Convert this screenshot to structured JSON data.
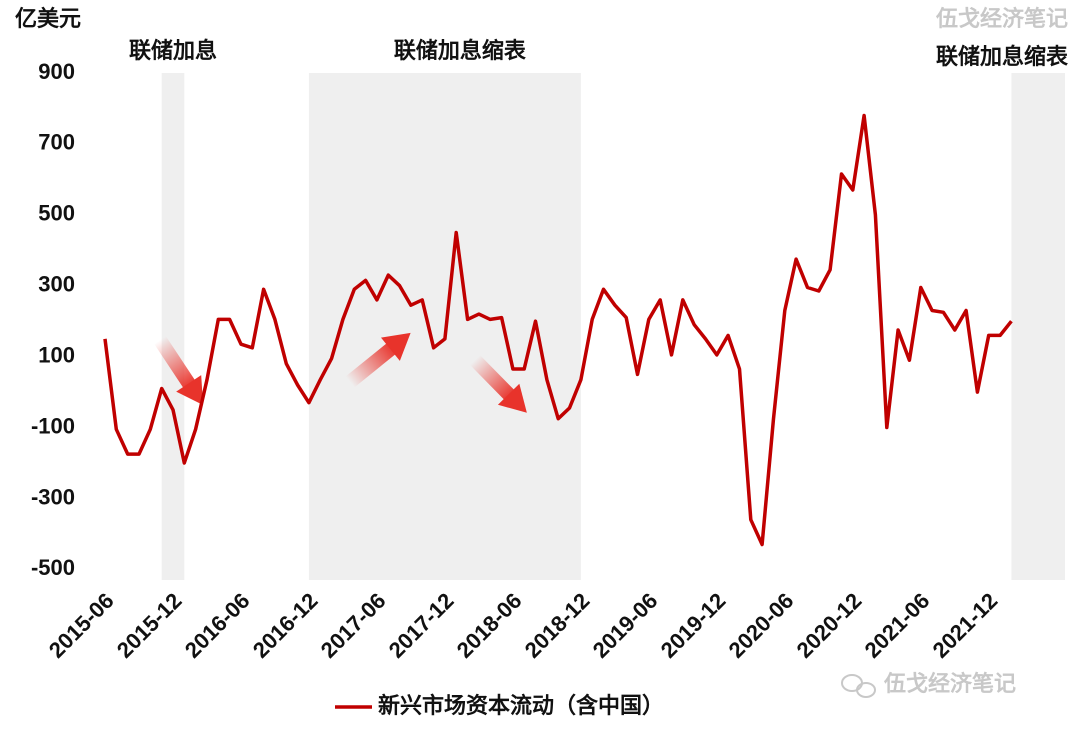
{
  "chart_data": {
    "type": "line",
    "y_axis_label": "亿美元",
    "watermark": "伍戈经济笔记",
    "x": [
      "2015-06",
      "2015-07",
      "2015-08",
      "2015-09",
      "2015-10",
      "2015-11",
      "2015-12",
      "2016-01",
      "2016-02",
      "2016-03",
      "2016-04",
      "2016-05",
      "2016-06",
      "2016-07",
      "2016-08",
      "2016-09",
      "2016-10",
      "2016-11",
      "2016-12",
      "2017-01",
      "2017-02",
      "2017-03",
      "2017-04",
      "2017-05",
      "2017-06",
      "2017-07",
      "2017-08",
      "2017-09",
      "2017-10",
      "2017-11",
      "2017-12",
      "2018-01",
      "2018-02",
      "2018-03",
      "2018-04",
      "2018-05",
      "2018-06",
      "2018-07",
      "2018-08",
      "2018-09",
      "2018-10",
      "2018-11",
      "2018-12",
      "2019-01",
      "2019-02",
      "2019-03",
      "2019-04",
      "2019-05",
      "2019-06",
      "2019-07",
      "2019-08",
      "2019-09",
      "2019-10",
      "2019-11",
      "2019-12",
      "2020-01",
      "2020-02",
      "2020-03",
      "2020-04",
      "2020-05",
      "2020-06",
      "2020-07",
      "2020-08",
      "2020-09",
      "2020-10",
      "2020-11",
      "2020-12",
      "2021-01",
      "2021-02",
      "2021-03",
      "2021-04",
      "2021-05",
      "2021-06",
      "2021-07",
      "2021-08",
      "2021-09",
      "2021-10",
      "2021-11",
      "2021-12",
      "2022-01",
      "2022-02"
    ],
    "series": [
      {
        "name": "新兴市场资本流动（含中国）",
        "color": "#c00000",
        "values": [
          150,
          -105,
          -175,
          -175,
          -105,
          10,
          -50,
          -200,
          -105,
          35,
          205,
          205,
          135,
          125,
          290,
          205,
          80,
          20,
          -30,
          35,
          95,
          205,
          290,
          315,
          260,
          330,
          300,
          245,
          260,
          125,
          150,
          450,
          205,
          220,
          205,
          210,
          65,
          65,
          200,
          35,
          -75,
          -45,
          35,
          205,
          290,
          245,
          210,
          50,
          205,
          260,
          105,
          260,
          190,
          150,
          105,
          160,
          65,
          -360,
          -430,
          -75,
          230,
          375,
          295,
          285,
          345,
          615,
          570,
          780,
          500,
          -100,
          175,
          90,
          295,
          230,
          225,
          175,
          230,
          0,
          160,
          160,
          200
        ]
      }
    ],
    "xticks": [
      "2015-06",
      "2015-12",
      "2016-06",
      "2016-12",
      "2017-06",
      "2017-12",
      "2018-06",
      "2018-12",
      "2019-06",
      "2019-12",
      "2020-06",
      "2020-12",
      "2021-06",
      "2021-12"
    ],
    "ylim": [
      -530,
      900
    ],
    "yticks": [
      -500,
      -300,
      -100,
      100,
      300,
      500,
      700,
      900
    ],
    "shaded_regions": [
      {
        "start": "2015-11",
        "end": "2016-01",
        "label": "联储加息"
      },
      {
        "start": "2016-12",
        "end": "2018-12",
        "label": "联储加息缩表"
      },
      {
        "start": "2022-02",
        "end": "2022-07",
        "label": "联储加息缩表"
      }
    ],
    "shade_color": "#efefef"
  }
}
